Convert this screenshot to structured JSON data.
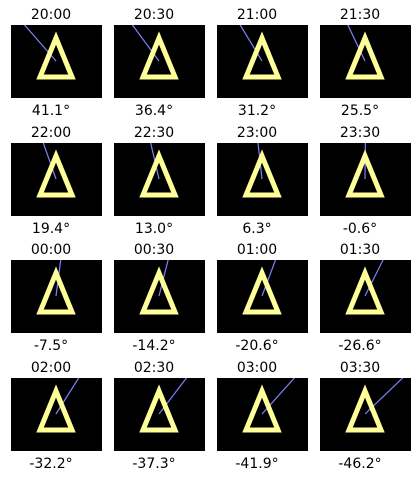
{
  "colors": {
    "background": "#ffffff",
    "panel": "#000000",
    "triangle": "#ffff99",
    "line": "#8080ff"
  },
  "icons": {
    "triangle": "delta-triangle-icon",
    "line": "direction-line"
  },
  "frames": [
    {
      "time": "20:00",
      "angle_label": "41.1°",
      "angle": 41.1
    },
    {
      "time": "20:30",
      "angle_label": "36.4°",
      "angle": 36.4
    },
    {
      "time": "21:00",
      "angle_label": "31.2°",
      "angle": 31.2
    },
    {
      "time": "21:30",
      "angle_label": "25.5°",
      "angle": 25.5
    },
    {
      "time": "22:00",
      "angle_label": "19.4°",
      "angle": 19.4
    },
    {
      "time": "22:30",
      "angle_label": "13.0°",
      "angle": 13.0
    },
    {
      "time": "23:00",
      "angle_label": "6.3°",
      "angle": 6.3
    },
    {
      "time": "23:30",
      "angle_label": "-0.6°",
      "angle": -0.6
    },
    {
      "time": "00:00",
      "angle_label": "-7.5°",
      "angle": -7.5
    },
    {
      "time": "00:30",
      "angle_label": "-14.2°",
      "angle": -14.2
    },
    {
      "time": "01:00",
      "angle_label": "-20.6°",
      "angle": -20.6
    },
    {
      "time": "01:30",
      "angle_label": "-26.6°",
      "angle": -26.6
    },
    {
      "time": "02:00",
      "angle_label": "-32.2°",
      "angle": -32.2
    },
    {
      "time": "02:30",
      "angle_label": "-37.3°",
      "angle": -37.3
    },
    {
      "time": "03:00",
      "angle_label": "-41.9°",
      "angle": -41.9
    },
    {
      "time": "03:30",
      "angle_label": "-46.2°",
      "angle": -46.2
    }
  ]
}
